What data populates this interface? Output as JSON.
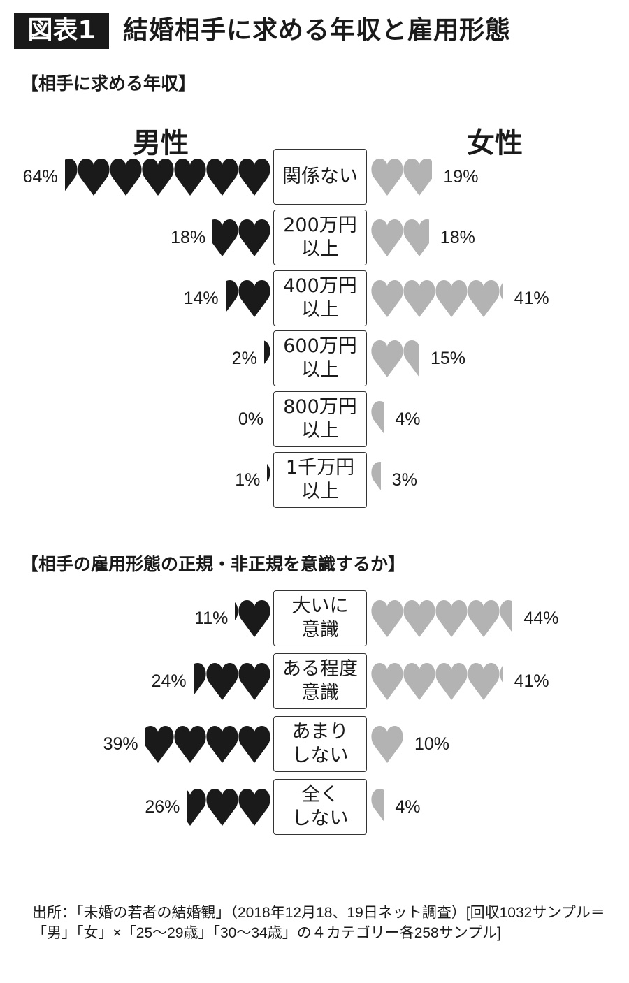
{
  "header": {
    "badge": "図表1",
    "title": "結婚相手に求める年収と雇用形態"
  },
  "colors": {
    "male": "#1a1a1a",
    "female": "#b3b3b3"
  },
  "chart_data": [
    {
      "type": "pictogram",
      "title": "【相手に求める年収】",
      "unit_per_icon": "10%",
      "icon": "heart-icon",
      "series_labels": {
        "male": "男性",
        "female": "女性"
      },
      "categories": [
        "関係ない",
        "200万円\n以上",
        "400万円\n以上",
        "600万円\n以上",
        "800万円\n以上",
        "1千万円\n以上"
      ],
      "series": [
        {
          "name": "男性",
          "values": [
            64,
            18,
            14,
            2,
            0,
            1
          ],
          "labels": [
            "64%",
            "18%",
            "14%",
            "2%",
            "0%",
            "1%"
          ]
        },
        {
          "name": "女性",
          "values": [
            19,
            18,
            41,
            15,
            4,
            3
          ],
          "labels": [
            "19%",
            "18%",
            "41%",
            "15%",
            "4%",
            "3%"
          ]
        }
      ]
    },
    {
      "type": "pictogram",
      "title": "【相手の雇用形態の正規・非正規を意識するか】",
      "unit_per_icon": "10%",
      "icon": "heart-icon",
      "categories": [
        "大いに\n意識",
        "ある程度\n意識",
        "あまり\nしない",
        "全く\nしない"
      ],
      "series": [
        {
          "name": "男性",
          "values": [
            11,
            24,
            39,
            26
          ],
          "labels": [
            "11%",
            "24%",
            "39%",
            "26%"
          ]
        },
        {
          "name": "女性",
          "values": [
            44,
            41,
            10,
            4
          ],
          "labels": [
            "44%",
            "41%",
            "10%",
            "4%"
          ]
        }
      ]
    }
  ],
  "source": "出所：「未婚の若者の結婚観」（2018年12月18、19日ネット調査）[回収1032サンプル＝「男」「女」×「25〜29歳」「30〜34歳」の４カテゴリー各258サンプル]"
}
